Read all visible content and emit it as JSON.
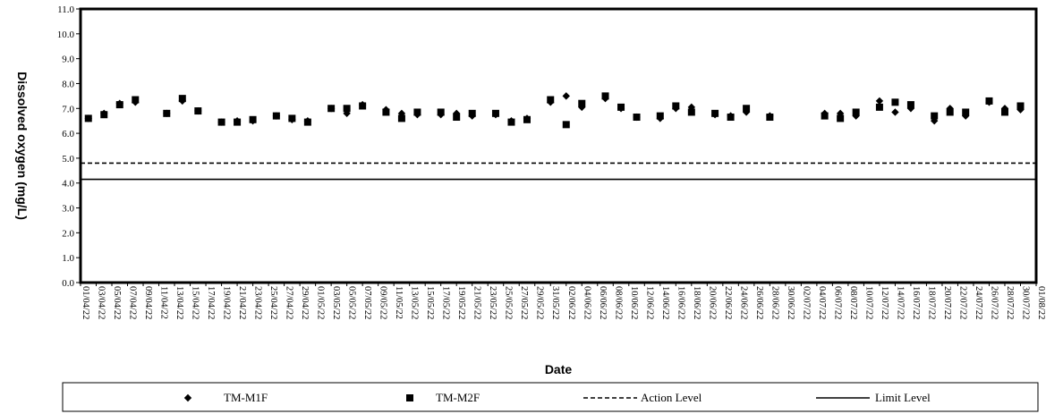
{
  "chart_data": {
    "type": "scatter",
    "title": "",
    "xlabel": "Date",
    "ylabel": "Dissolved oxygen (mg/L)",
    "ylim": [
      0.0,
      11.0
    ],
    "y_ticks": [
      "0.0",
      "1.0",
      "2.0",
      "3.0",
      "4.0",
      "5.0",
      "6.0",
      "7.0",
      "8.0",
      "9.0",
      "10.0",
      "11.0"
    ],
    "x_ticks": [
      "01/04/22",
      "03/04/22",
      "05/04/22",
      "07/04/22",
      "09/04/22",
      "11/04/22",
      "13/04/22",
      "15/04/22",
      "17/04/22",
      "19/04/22",
      "21/04/22",
      "23/04/22",
      "25/04/22",
      "27/04/22",
      "29/04/22",
      "01/05/22",
      "03/05/22",
      "05/05/22",
      "07/05/22",
      "09/05/22",
      "11/05/22",
      "13/05/22",
      "15/05/22",
      "17/05/22",
      "19/05/22",
      "21/05/22",
      "23/05/22",
      "25/05/22",
      "27/05/22",
      "29/05/22",
      "31/05/22",
      "02/06/22",
      "04/06/22",
      "06/06/22",
      "08/06/22",
      "10/06/22",
      "12/06/22",
      "14/06/22",
      "16/06/22",
      "18/06/22",
      "20/06/22",
      "22/06/22",
      "24/06/22",
      "26/06/22",
      "28/06/22",
      "30/06/22",
      "02/07/22",
      "04/07/22",
      "06/07/22",
      "08/07/22",
      "10/07/22",
      "12/07/22",
      "14/07/22",
      "16/07/22",
      "18/07/22",
      "20/07/22",
      "22/07/22",
      "24/07/22",
      "26/07/22",
      "28/07/22",
      "30/07/22",
      "01/08/22"
    ],
    "x_start": "2022-04-01",
    "x_end": "2022-08-01",
    "grid": false,
    "legend_position": "bottom",
    "series": [
      {
        "name": "TM-M1F",
        "marker": "diamond",
        "color": "#000000",
        "points": [
          [
            "2022-04-02",
            6.6
          ],
          [
            "2022-04-04",
            6.8
          ],
          [
            "2022-04-06",
            7.2
          ],
          [
            "2022-04-08",
            7.25
          ],
          [
            "2022-04-12",
            6.8
          ],
          [
            "2022-04-14",
            7.3
          ],
          [
            "2022-04-16",
            6.9
          ],
          [
            "2022-04-19",
            6.45
          ],
          [
            "2022-04-21",
            6.5
          ],
          [
            "2022-04-23",
            6.5
          ],
          [
            "2022-04-26",
            6.7
          ],
          [
            "2022-04-28",
            6.55
          ],
          [
            "2022-04-30",
            6.5
          ],
          [
            "2022-05-03",
            7.0
          ],
          [
            "2022-05-05",
            6.8
          ],
          [
            "2022-05-07",
            7.15
          ],
          [
            "2022-05-10",
            6.95
          ],
          [
            "2022-05-12",
            6.8
          ],
          [
            "2022-05-14",
            6.75
          ],
          [
            "2022-05-17",
            6.75
          ],
          [
            "2022-05-19",
            6.8
          ],
          [
            "2022-05-21",
            6.7
          ],
          [
            "2022-05-24",
            6.75
          ],
          [
            "2022-05-26",
            6.5
          ],
          [
            "2022-05-28",
            6.6
          ],
          [
            "2022-05-31",
            7.25
          ],
          [
            "2022-06-02",
            7.5
          ],
          [
            "2022-06-04",
            7.05
          ],
          [
            "2022-06-07",
            7.4
          ],
          [
            "2022-06-09",
            7.0
          ],
          [
            "2022-06-11",
            6.65
          ],
          [
            "2022-06-14",
            6.6
          ],
          [
            "2022-06-16",
            7.0
          ],
          [
            "2022-06-18",
            7.05
          ],
          [
            "2022-06-21",
            6.75
          ],
          [
            "2022-06-23",
            6.7
          ],
          [
            "2022-06-25",
            6.85
          ],
          [
            "2022-06-28",
            6.7
          ],
          [
            "2022-07-05",
            6.8
          ],
          [
            "2022-07-07",
            6.8
          ],
          [
            "2022-07-09",
            6.7
          ],
          [
            "2022-07-12",
            7.3
          ],
          [
            "2022-07-14",
            6.85
          ],
          [
            "2022-07-16",
            7.0
          ],
          [
            "2022-07-19",
            6.5
          ],
          [
            "2022-07-21",
            7.0
          ],
          [
            "2022-07-23",
            6.7
          ],
          [
            "2022-07-26",
            7.25
          ],
          [
            "2022-07-28",
            7.0
          ],
          [
            "2022-07-30",
            6.95
          ]
        ]
      },
      {
        "name": "TM-M2F",
        "marker": "square",
        "color": "#000000",
        "points": [
          [
            "2022-04-02",
            6.6
          ],
          [
            "2022-04-04",
            6.75
          ],
          [
            "2022-04-06",
            7.15
          ],
          [
            "2022-04-08",
            7.35
          ],
          [
            "2022-04-12",
            6.8
          ],
          [
            "2022-04-14",
            7.4
          ],
          [
            "2022-04-16",
            6.9
          ],
          [
            "2022-04-19",
            6.45
          ],
          [
            "2022-04-21",
            6.45
          ],
          [
            "2022-04-23",
            6.55
          ],
          [
            "2022-04-26",
            6.7
          ],
          [
            "2022-04-28",
            6.6
          ],
          [
            "2022-04-30",
            6.45
          ],
          [
            "2022-05-03",
            7.0
          ],
          [
            "2022-05-05",
            7.0
          ],
          [
            "2022-05-07",
            7.1
          ],
          [
            "2022-05-10",
            6.85
          ],
          [
            "2022-05-12",
            6.6
          ],
          [
            "2022-05-14",
            6.85
          ],
          [
            "2022-05-17",
            6.85
          ],
          [
            "2022-05-19",
            6.65
          ],
          [
            "2022-05-21",
            6.8
          ],
          [
            "2022-05-24",
            6.8
          ],
          [
            "2022-05-26",
            6.45
          ],
          [
            "2022-05-28",
            6.55
          ],
          [
            "2022-05-31",
            7.35
          ],
          [
            "2022-06-02",
            6.35
          ],
          [
            "2022-06-04",
            7.2
          ],
          [
            "2022-06-07",
            7.5
          ],
          [
            "2022-06-09",
            7.05
          ],
          [
            "2022-06-11",
            6.65
          ],
          [
            "2022-06-14",
            6.7
          ],
          [
            "2022-06-16",
            7.1
          ],
          [
            "2022-06-18",
            6.85
          ],
          [
            "2022-06-21",
            6.8
          ],
          [
            "2022-06-23",
            6.65
          ],
          [
            "2022-06-25",
            7.0
          ],
          [
            "2022-06-28",
            6.65
          ],
          [
            "2022-07-05",
            6.7
          ],
          [
            "2022-07-07",
            6.6
          ],
          [
            "2022-07-09",
            6.85
          ],
          [
            "2022-07-12",
            7.05
          ],
          [
            "2022-07-14",
            7.25
          ],
          [
            "2022-07-16",
            7.15
          ],
          [
            "2022-07-19",
            6.7
          ],
          [
            "2022-07-21",
            6.85
          ],
          [
            "2022-07-23",
            6.85
          ],
          [
            "2022-07-26",
            7.3
          ],
          [
            "2022-07-28",
            6.85
          ],
          [
            "2022-07-30",
            7.1
          ]
        ]
      }
    ],
    "reference_lines": [
      {
        "name": "Action Level",
        "value": 4.8,
        "style": "dashed"
      },
      {
        "name": "Limit Level",
        "value": 4.15,
        "style": "solid"
      }
    ]
  }
}
